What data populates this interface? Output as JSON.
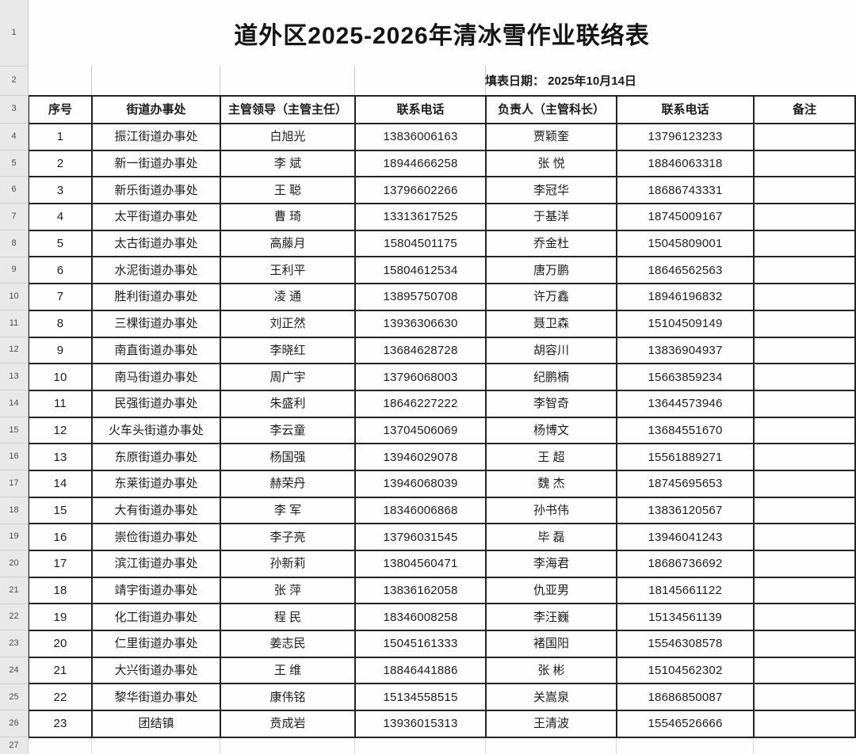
{
  "sheet": {
    "title": "道外区2025-2026年清冰雪作业联络表",
    "fill_date_label": "填表日期： 2025年10月14日",
    "columns": [
      "序号",
      "街道办事处",
      "主管领导（主管主任）",
      "联系电话",
      "负责人（主管科长）",
      "联系电话",
      "备注"
    ],
    "rows": [
      {
        "no": "1",
        "office": "振江街道办事处",
        "leader": "白旭光",
        "leader_phone": "13836006163",
        "manager": "贾颖奎",
        "manager_phone": "13796123233",
        "note": ""
      },
      {
        "no": "2",
        "office": "新一街道办事处",
        "leader": "李 斌",
        "leader_phone": "18944666258",
        "manager": "张 悦",
        "manager_phone": "18846063318",
        "note": ""
      },
      {
        "no": "3",
        "office": "新乐街道办事处",
        "leader": "王 聪",
        "leader_phone": "13796602266",
        "manager": "李冠华",
        "manager_phone": "18686743331",
        "note": ""
      },
      {
        "no": "4",
        "office": "太平街道办事处",
        "leader": "曹 琦",
        "leader_phone": "13313617525",
        "manager": "于基洋",
        "manager_phone": "18745009167",
        "note": ""
      },
      {
        "no": "5",
        "office": "太古街道办事处",
        "leader": "高藤月",
        "leader_phone": "15804501175",
        "manager": "乔金杜",
        "manager_phone": "15045809001",
        "note": ""
      },
      {
        "no": "6",
        "office": "水泥街道办事处",
        "leader": "王利平",
        "leader_phone": "15804612534",
        "manager": "唐万鹏",
        "manager_phone": "18646562563",
        "note": ""
      },
      {
        "no": "7",
        "office": "胜利街道办事处",
        "leader": "凌 通",
        "leader_phone": "13895750708",
        "manager": "许万鑫",
        "manager_phone": "18946196832",
        "note": ""
      },
      {
        "no": "8",
        "office": "三棵街道办事处",
        "leader": "刘正然",
        "leader_phone": "13936306630",
        "manager": "聂卫森",
        "manager_phone": "15104509149",
        "note": ""
      },
      {
        "no": "9",
        "office": "南直街道办事处",
        "leader": "李晓红",
        "leader_phone": "13684628728",
        "manager": "胡容川",
        "manager_phone": "13836904937",
        "note": ""
      },
      {
        "no": "10",
        "office": "南马街道办事处",
        "leader": "周广宇",
        "leader_phone": "13796068003",
        "manager": "纪鹏楠",
        "manager_phone": "15663859234",
        "note": ""
      },
      {
        "no": "11",
        "office": "民强街道办事处",
        "leader": "朱盛利",
        "leader_phone": "18646227222",
        "manager": "李智奇",
        "manager_phone": "13644573946",
        "note": ""
      },
      {
        "no": "12",
        "office": "火车头街道办事处",
        "leader": "李云童",
        "leader_phone": "13704506069",
        "manager": "杨博文",
        "manager_phone": "13684551670",
        "note": ""
      },
      {
        "no": "13",
        "office": "东原街道办事处",
        "leader": "杨国强",
        "leader_phone": "13946029078",
        "manager": "王 超",
        "manager_phone": "15561889271",
        "note": ""
      },
      {
        "no": "14",
        "office": "东莱街道办事处",
        "leader": "赫荣丹",
        "leader_phone": "13946068039",
        "manager": "魏 杰",
        "manager_phone": "18745695653",
        "note": ""
      },
      {
        "no": "15",
        "office": "大有街道办事处",
        "leader": "李 军",
        "leader_phone": "18346006868",
        "manager": "孙书伟",
        "manager_phone": "13836120567",
        "note": ""
      },
      {
        "no": "16",
        "office": "崇俭街道办事处",
        "leader": "李子亮",
        "leader_phone": "13796031545",
        "manager": "毕 磊",
        "manager_phone": "13946041243",
        "note": ""
      },
      {
        "no": "17",
        "office": "滨江街道办事处",
        "leader": "孙新莉",
        "leader_phone": "13804560471",
        "manager": "李海君",
        "manager_phone": "18686736692",
        "note": ""
      },
      {
        "no": "18",
        "office": "靖宇街道办事处",
        "leader": "张 萍",
        "leader_phone": "13836162058",
        "manager": "仇亚男",
        "manager_phone": "18145661122",
        "note": ""
      },
      {
        "no": "19",
        "office": "化工街道办事处",
        "leader": "程 民",
        "leader_phone": "18346008258",
        "manager": "李汪巍",
        "manager_phone": "15134561139",
        "note": ""
      },
      {
        "no": "20",
        "office": "仁里街道办事处",
        "leader": "姜志民",
        "leader_phone": "15045161333",
        "manager": "褚国阳",
        "manager_phone": "15546308578",
        "note": ""
      },
      {
        "no": "21",
        "office": "大兴街道办事处",
        "leader": "王 维",
        "leader_phone": "18846441886",
        "manager": "张 彬",
        "manager_phone": "15104562302",
        "note": ""
      },
      {
        "no": "22",
        "office": "黎华街道办事处",
        "leader": "康伟铭",
        "leader_phone": "15134558515",
        "manager": "关嵩泉",
        "manager_phone": "18686850087",
        "note": ""
      },
      {
        "no": "23",
        "office": "团结镇",
        "leader": "贲成岩",
        "leader_phone": "13936015313",
        "manager": "王清波",
        "manager_phone": "15546526666",
        "note": ""
      }
    ],
    "gutter_rows": [
      "1",
      "2",
      "3",
      "4",
      "5",
      "6",
      "7",
      "8",
      "9",
      "10",
      "11",
      "12",
      "13",
      "14",
      "15",
      "16",
      "17",
      "18",
      "19",
      "20",
      "21",
      "22",
      "23",
      "24",
      "25",
      "26",
      "27"
    ]
  },
  "colors": {
    "table_border": "#242424",
    "gridline": "#c9c9c9",
    "gutter_bg": "#e9e9e9",
    "cell_bg": "#fefefe",
    "text": "#1c1c1c"
  }
}
